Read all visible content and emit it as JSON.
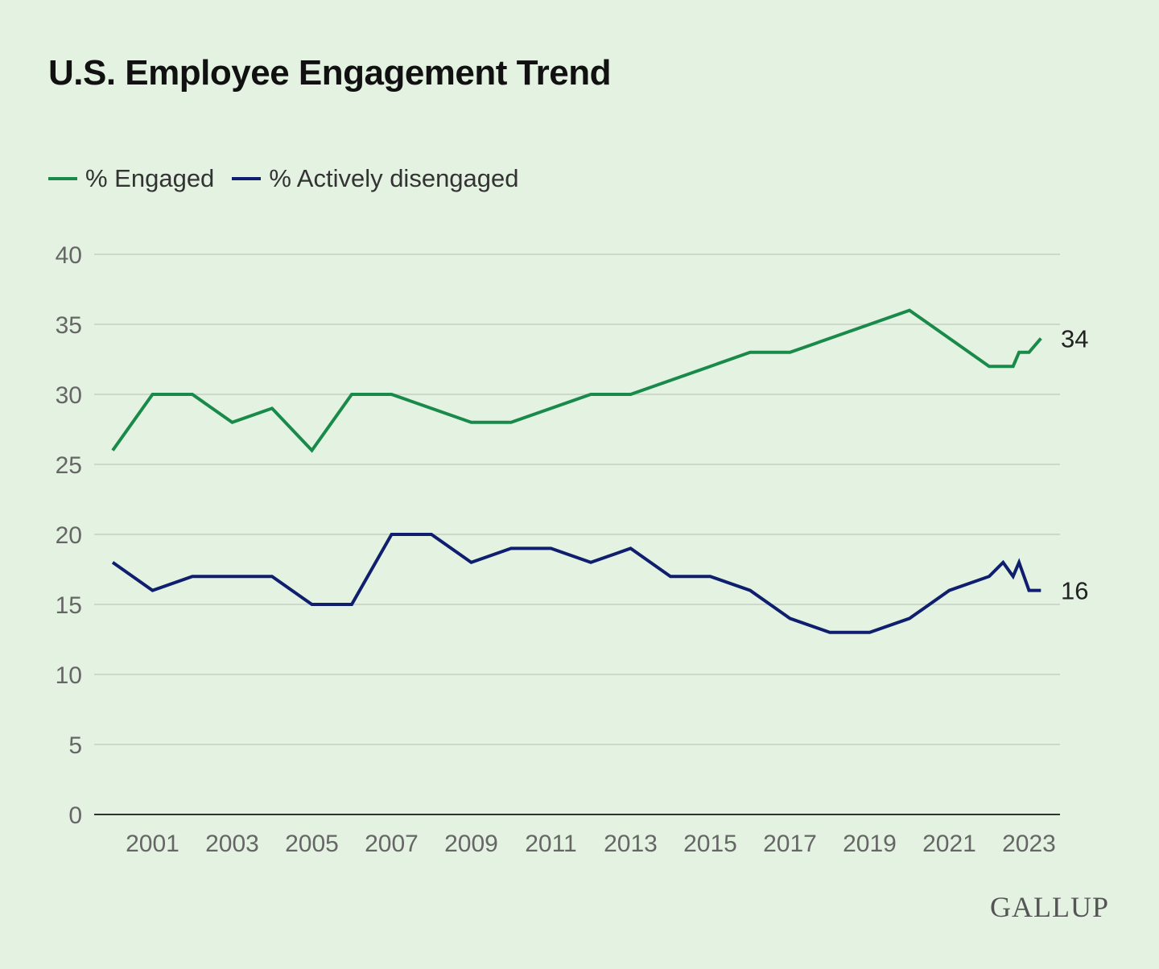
{
  "chart_data": {
    "type": "line",
    "title": "U.S. Employee Engagement Trend",
    "xlabel": "",
    "ylabel": "",
    "ylim": [
      0,
      40
    ],
    "xlim": [
      1999.8,
      2023.8
    ],
    "yticks": [
      0,
      5,
      10,
      15,
      20,
      25,
      30,
      35,
      40
    ],
    "xticks": [
      2001,
      2003,
      2005,
      2007,
      2009,
      2011,
      2013,
      2015,
      2017,
      2019,
      2021,
      2023
    ],
    "grid": true,
    "legend_placement": "top-left",
    "series": [
      {
        "name": "% Engaged",
        "color": "#1a8a4a",
        "end_label": "34",
        "points": [
          [
            2000,
            26
          ],
          [
            2001,
            30
          ],
          [
            2002,
            30
          ],
          [
            2003,
            28
          ],
          [
            2004,
            29
          ],
          [
            2005,
            26
          ],
          [
            2006,
            30
          ],
          [
            2007,
            30
          ],
          [
            2008,
            29
          ],
          [
            2009,
            28
          ],
          [
            2010,
            28
          ],
          [
            2011,
            29
          ],
          [
            2012,
            30
          ],
          [
            2013,
            30
          ],
          [
            2014,
            31
          ],
          [
            2015,
            32
          ],
          [
            2016,
            33
          ],
          [
            2017,
            33
          ],
          [
            2018,
            34
          ],
          [
            2019,
            35
          ],
          [
            2020,
            36
          ],
          [
            2021,
            34
          ],
          [
            2022,
            32
          ],
          [
            2022.6,
            32
          ],
          [
            2022.75,
            33
          ],
          [
            2023,
            33
          ],
          [
            2023.3,
            34
          ]
        ]
      },
      {
        "name": "% Actively disengaged",
        "color": "#0f1f6e",
        "end_label": "16",
        "points": [
          [
            2000,
            18
          ],
          [
            2001,
            16
          ],
          [
            2002,
            17
          ],
          [
            2003,
            17
          ],
          [
            2004,
            17
          ],
          [
            2005,
            15
          ],
          [
            2006,
            15
          ],
          [
            2007,
            20
          ],
          [
            2008,
            20
          ],
          [
            2009,
            18
          ],
          [
            2010,
            19
          ],
          [
            2011,
            19
          ],
          [
            2012,
            18
          ],
          [
            2013,
            19
          ],
          [
            2014,
            17
          ],
          [
            2015,
            17
          ],
          [
            2016,
            16
          ],
          [
            2017,
            14
          ],
          [
            2018,
            13
          ],
          [
            2019,
            13
          ],
          [
            2020,
            14
          ],
          [
            2021,
            16
          ],
          [
            2022,
            17
          ],
          [
            2022.35,
            18
          ],
          [
            2022.6,
            17
          ],
          [
            2022.75,
            18
          ],
          [
            2023,
            16
          ],
          [
            2023.3,
            16
          ]
        ]
      }
    ]
  },
  "logo": "GALLUP"
}
